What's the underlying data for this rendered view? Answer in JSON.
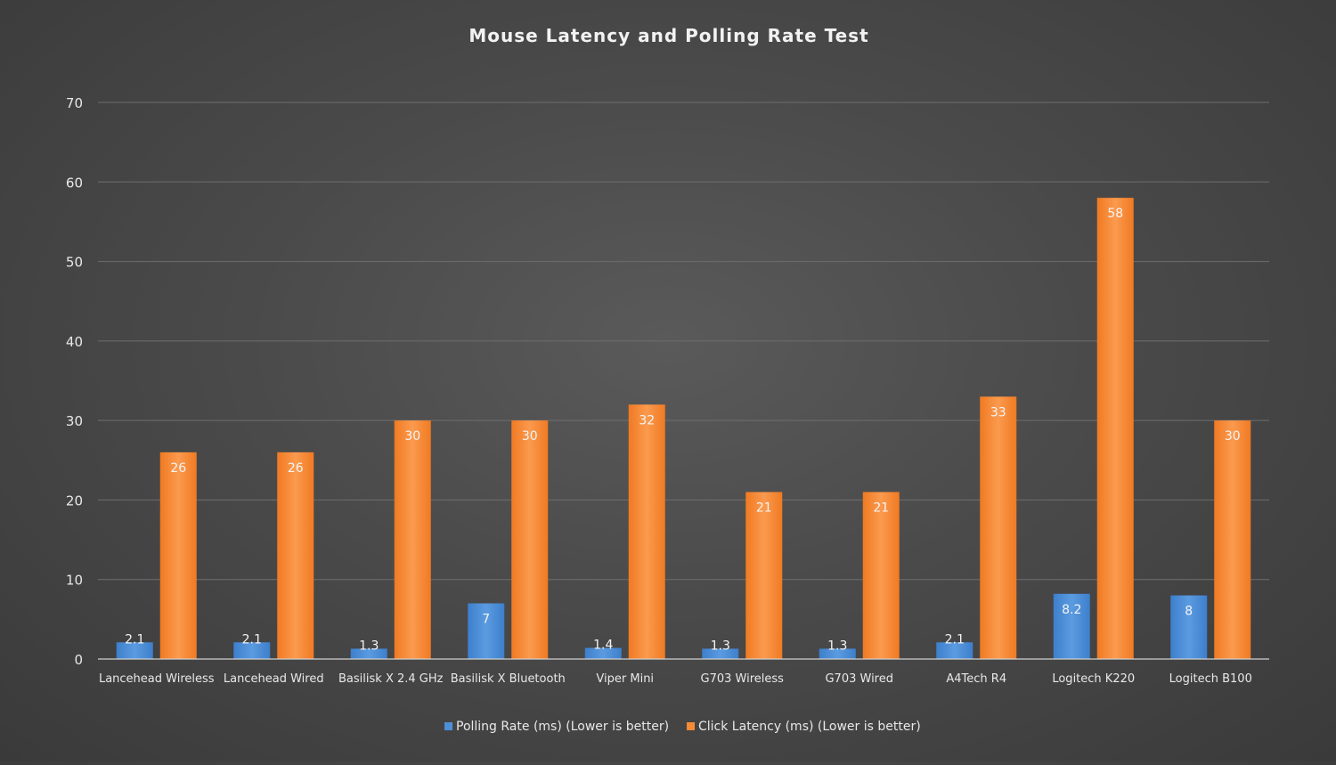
{
  "chart_data": {
    "type": "bar",
    "title": "Mouse Latency and Polling Rate Test",
    "categories": [
      "Lancehead Wireless",
      "Lancehead Wired",
      "Basilisk X 2.4 GHz",
      "Basilisk X Bluetooth",
      "Viper Mini",
      "G703 Wireless",
      "G703 Wired",
      "A4Tech R4",
      "Logitech K220",
      "Logitech B100"
    ],
    "series": [
      {
        "name": "Polling Rate (ms) (Lower is better)",
        "color": "#4f8fd6",
        "values": [
          2.1,
          2.1,
          1.3,
          7,
          1.4,
          1.3,
          1.3,
          2.1,
          8.2,
          8
        ]
      },
      {
        "name": "Click Latency (ms) (Lower is better)",
        "color": "#f58a38",
        "values": [
          26,
          26,
          30,
          30,
          32,
          21,
          21,
          33,
          58,
          30
        ]
      }
    ],
    "ylim": [
      0,
      70
    ],
    "yticks": [
      0,
      10,
      20,
      30,
      40,
      50,
      60,
      70
    ],
    "grid": true,
    "legend": "bottom"
  }
}
